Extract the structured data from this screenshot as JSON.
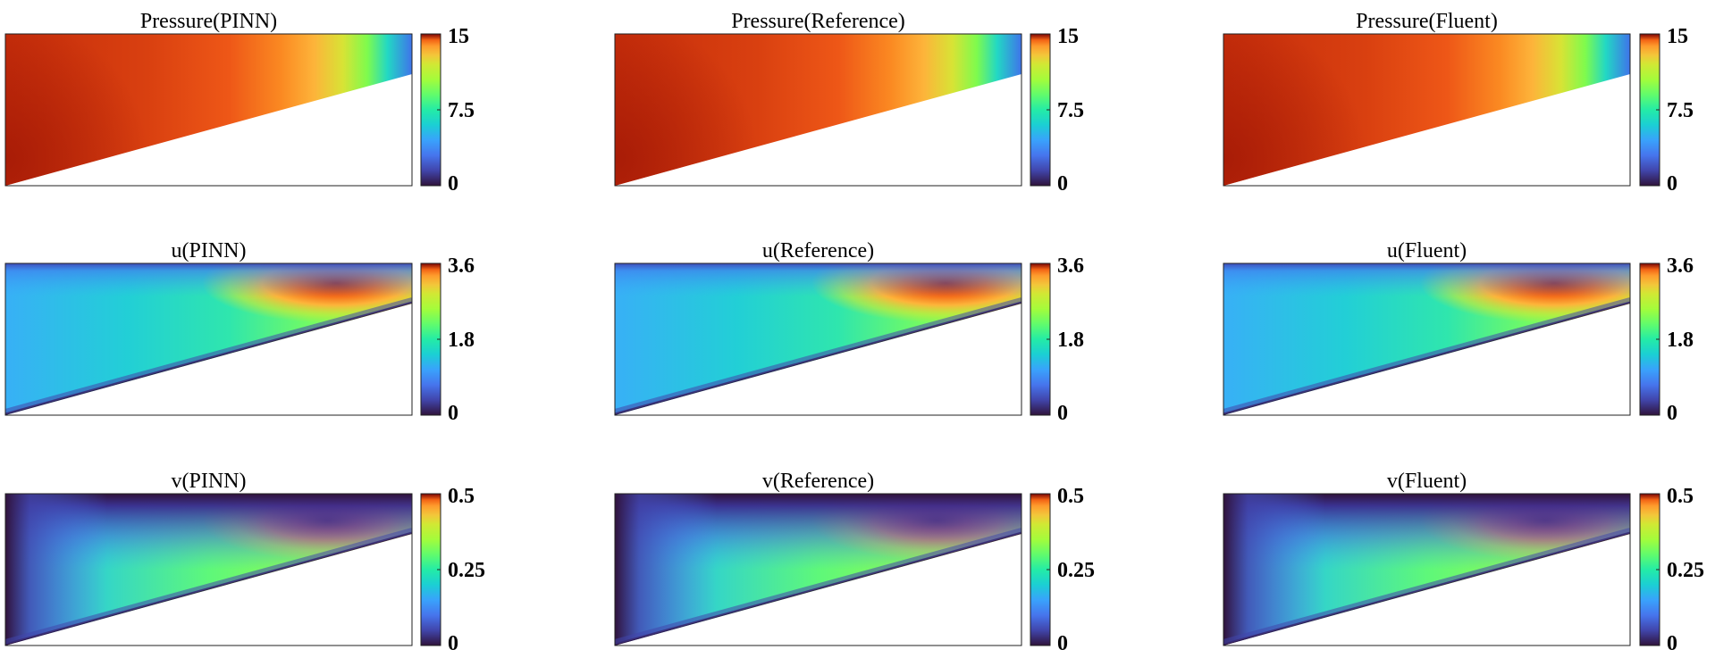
{
  "figure": {
    "colormap": "turbo"
  },
  "chart_data": [
    {
      "type": "heatmap",
      "field": "pressure",
      "title": "Pressure(PINN)",
      "colorbar": {
        "range": [
          0,
          15
        ],
        "ticks": [
          "15",
          "7.5",
          "0"
        ]
      }
    },
    {
      "type": "heatmap",
      "field": "pressure",
      "title": "Pressure(Reference)",
      "colorbar": {
        "range": [
          0,
          15
        ],
        "ticks": [
          "15",
          "7.5",
          "0"
        ]
      }
    },
    {
      "type": "heatmap",
      "field": "pressure",
      "title": "Pressure(Fluent)",
      "colorbar": {
        "range": [
          0,
          15
        ],
        "ticks": [
          "15",
          "7.5",
          "0"
        ]
      }
    },
    {
      "type": "heatmap",
      "field": "u",
      "title": "u(PINN)",
      "colorbar": {
        "range": [
          0,
          3.6
        ],
        "ticks": [
          "3.6",
          "1.8",
          "0"
        ]
      }
    },
    {
      "type": "heatmap",
      "field": "u",
      "title": "u(Reference)",
      "colorbar": {
        "range": [
          0,
          3.6
        ],
        "ticks": [
          "3.6",
          "1.8",
          "0"
        ]
      }
    },
    {
      "type": "heatmap",
      "field": "u",
      "title": "u(Fluent)",
      "colorbar": {
        "range": [
          0,
          3.6
        ],
        "ticks": [
          "3.6",
          "1.8",
          "0"
        ]
      }
    },
    {
      "type": "heatmap",
      "field": "v",
      "title": "v(PINN)",
      "colorbar": {
        "range": [
          0,
          0.5
        ],
        "ticks": [
          "0.5",
          "0.25",
          "0"
        ]
      }
    },
    {
      "type": "heatmap",
      "field": "v",
      "title": "v(Reference)",
      "colorbar": {
        "range": [
          0,
          0.5
        ],
        "ticks": [
          "0.5",
          "0.25",
          "0"
        ]
      }
    },
    {
      "type": "heatmap",
      "field": "v",
      "title": "v(Fluent)",
      "colorbar": {
        "range": [
          0,
          0.5
        ],
        "ticks": [
          "0.5",
          "0.25",
          "0"
        ]
      }
    }
  ]
}
